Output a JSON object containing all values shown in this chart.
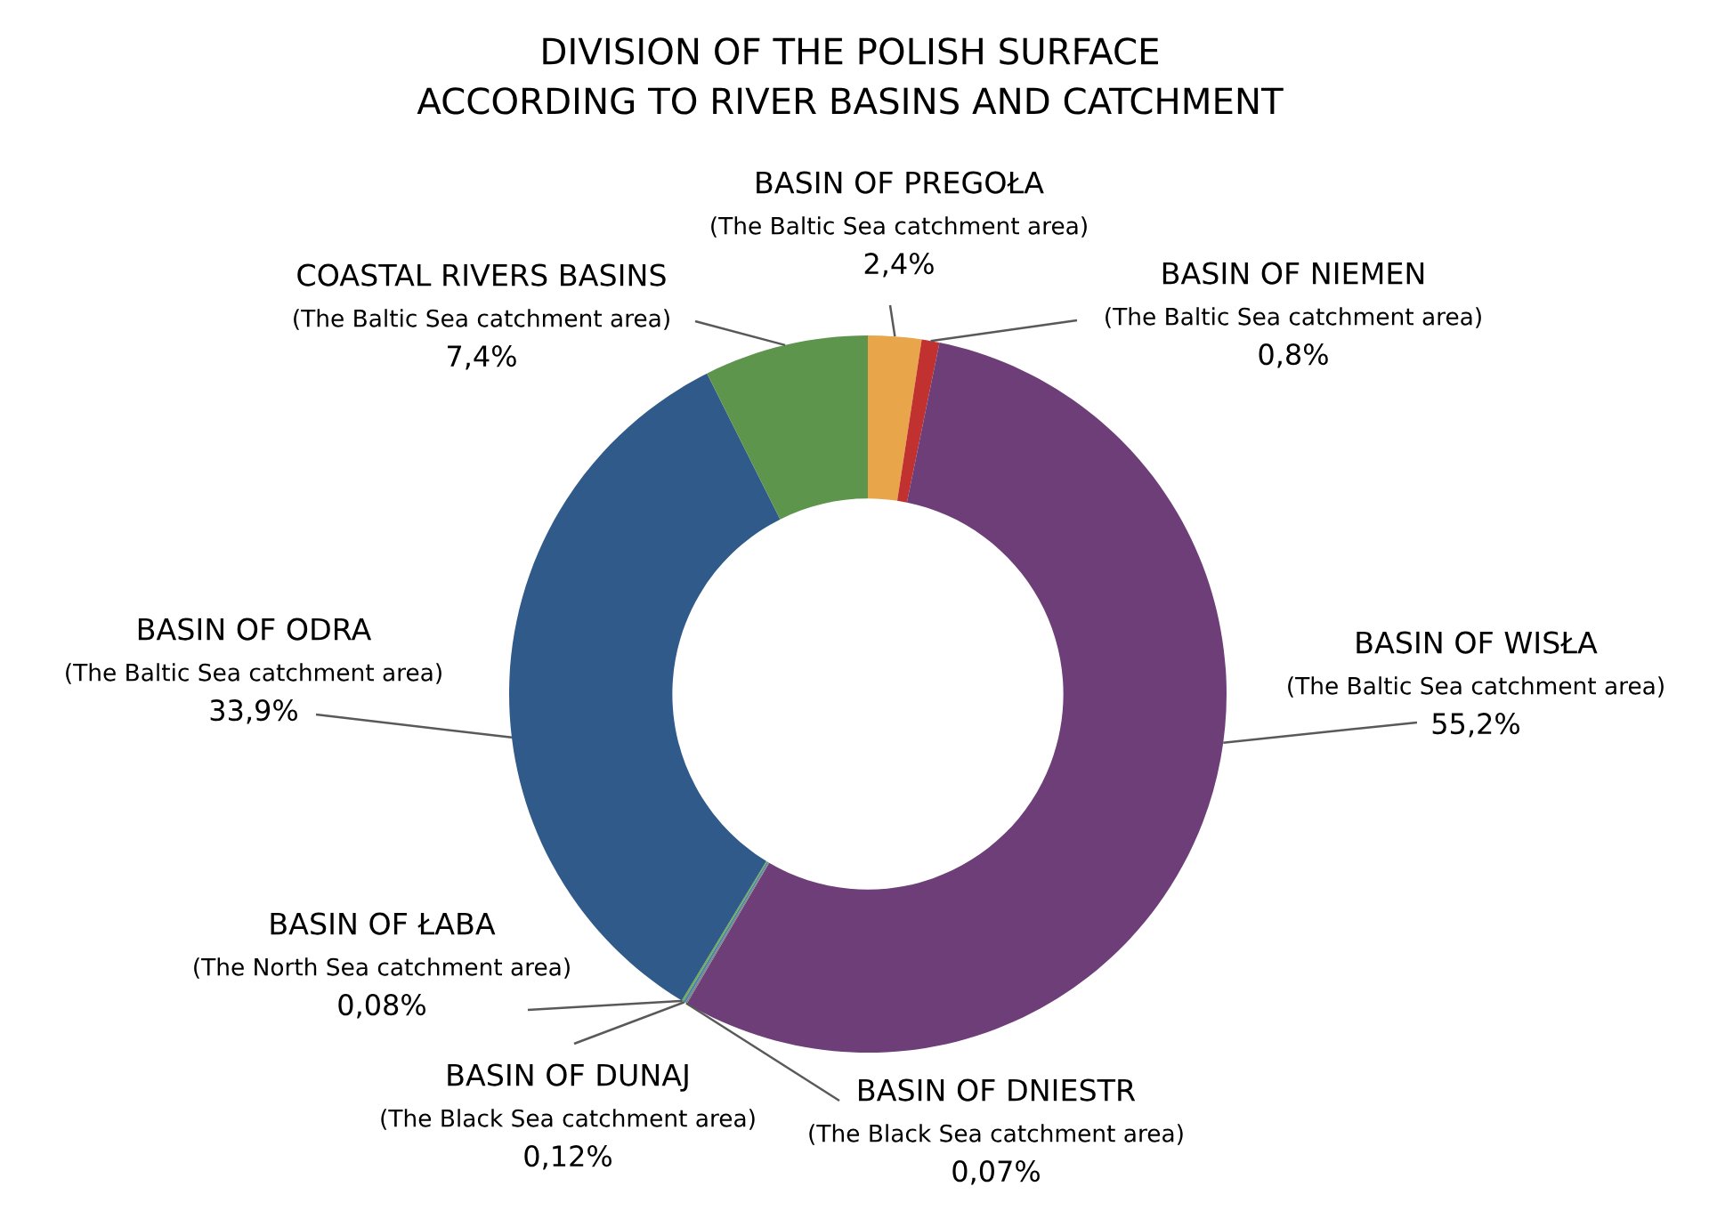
{
  "chart_data": {
    "type": "donut",
    "title": "DIVISION OF THE POLISH SURFACE\nACCORDING TO RIVER BASINS AND CATCHMENT",
    "categories": [
      "BASIN OF PREGOŁA\n(The Baltic Sea catchment area)",
      "BASIN OF NIEMEN\n(The Baltic Sea catchment area)",
      "BASIN OF WISŁA\n(The Baltic Sea catchment area)",
      "BASIN OF DNIESTR\n(The Black Sea catchment area)",
      "BASIN OF DUNAJ\n(The Black Sea catchment area)",
      "BASIN OF ŁABA\n(The North Sea catchment area)",
      "BASIN OF ODRA\n(The Baltic Sea catchment area)",
      "COASTAL RIVERS BASINS\n(The Baltic Sea catchment area)"
    ],
    "values": [
      2.4,
      0.8,
      55.2,
      0.07,
      0.12,
      0.08,
      33.9,
      7.4
    ],
    "value_labels": [
      "2,4%",
      "0,8%",
      "55,2%",
      "0,07%",
      "0,12%",
      "0,08%",
      "33,9%",
      "7,4%"
    ],
    "colors": [
      "#e8a54a",
      "#c0312f",
      "#6e3e78",
      "#7f7f7f",
      "#4e86a8",
      "#70ad47",
      "#305a8a",
      "#5e954c"
    ]
  }
}
